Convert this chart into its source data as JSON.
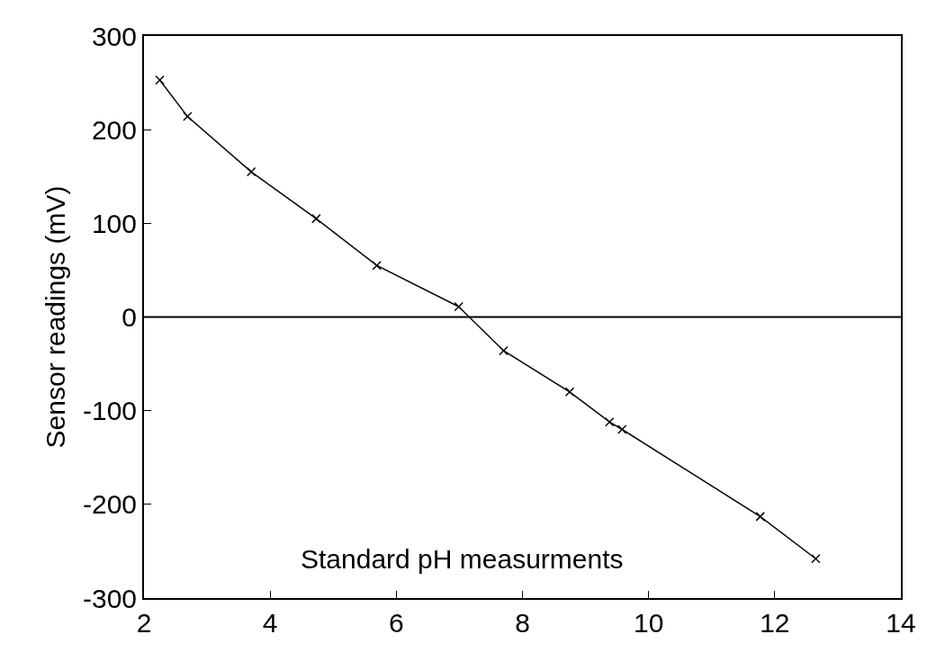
{
  "chart_data": {
    "type": "line",
    "ylabel": "Sensor readings (mV)",
    "annotations": [
      "Standard pH measurments"
    ],
    "x": [
      2.25,
      2.69,
      3.7,
      4.73,
      5.69,
      6.99,
      7.7,
      8.75,
      9.38,
      9.58,
      11.77,
      12.65
    ],
    "series": [
      {
        "color": "#000000",
        "values": [
          253,
          214,
          155,
          105,
          55,
          11,
          -36,
          -80,
          -112,
          -120,
          -213,
          -258
        ]
      }
    ],
    "xlim": [
      2,
      14
    ],
    "xticks": [
      2,
      4,
      6,
      8,
      10,
      12,
      14
    ],
    "ylim": [
      -300,
      300
    ],
    "yticks": [
      -300,
      -200,
      -100,
      0,
      100,
      200,
      300
    ],
    "ref_lines": [
      {
        "axis": "y",
        "value": 0,
        "color": "#000000"
      }
    ],
    "legend": false,
    "marker": "cross",
    "line_style": "solid"
  }
}
